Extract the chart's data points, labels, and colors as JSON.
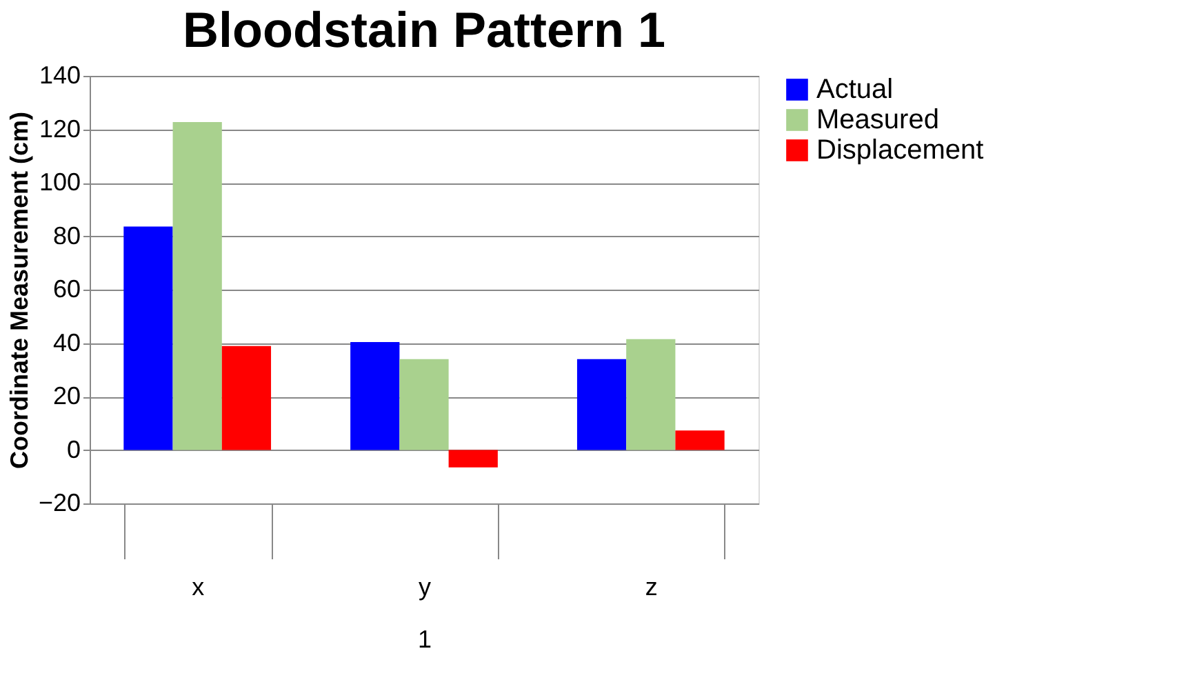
{
  "chart_data": {
    "type": "bar",
    "title": "Bloodstain Pattern 1",
    "ylabel": "Coordinate Measurement (cm)",
    "xlabel": "1",
    "categories": [
      "x",
      "y",
      "z"
    ],
    "series": [
      {
        "name": "Actual",
        "color": "#0000ff",
        "values": [
          83.6,
          40.4,
          34.0
        ]
      },
      {
        "name": "Measured",
        "color": "#a9d18e",
        "values": [
          122.7,
          34.0,
          41.5
        ]
      },
      {
        "name": "Displacement",
        "color": "#ff0000",
        "values": [
          38.9,
          -6.5,
          7.3
        ]
      }
    ],
    "ylim": [
      -20,
      140
    ],
    "yticks": [
      -20,
      0,
      20,
      40,
      60,
      80,
      100,
      120,
      140
    ],
    "grid": "y",
    "legend": "right"
  }
}
